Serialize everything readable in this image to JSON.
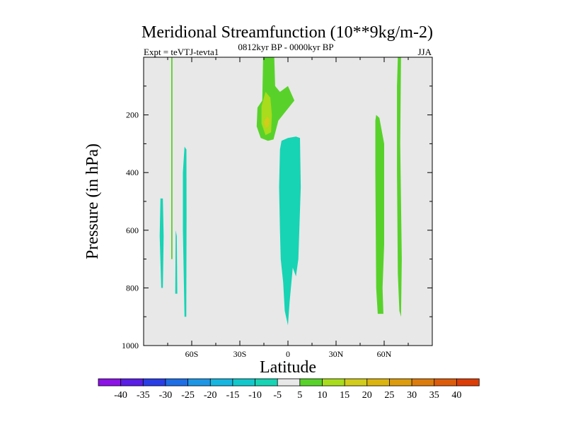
{
  "chart_data": {
    "type": "contour",
    "title": "Meridional Streamfunction (10**9kg/m-2)",
    "subtitle_left": "Expt = teVTJ-tevta1",
    "subtitle_center": "0812kyr BP - 0000kyr BP",
    "subtitle_right": "JJA",
    "xlabel": "Latitude",
    "ylabel": "Pressure (in hPa)",
    "xlim": [
      -90,
      90
    ],
    "ylim": [
      1000,
      0
    ],
    "x_ticks": [
      {
        "value": -60,
        "label": "60S"
      },
      {
        "value": -30,
        "label": "30S"
      },
      {
        "value": 0,
        "label": "0"
      },
      {
        "value": 30,
        "label": "30N"
      },
      {
        "value": 60,
        "label": "60N"
      }
    ],
    "y_ticks": [
      {
        "value": 200,
        "label": "200"
      },
      {
        "value": 400,
        "label": "400"
      },
      {
        "value": 600,
        "label": "600"
      },
      {
        "value": 800,
        "label": "800"
      },
      {
        "value": 1000,
        "label": "1000"
      }
    ],
    "background_color": "#e8e8e8",
    "contour_regions": [
      {
        "name": "SH cyan blob far",
        "level": -7.5,
        "color": "#16d4b4",
        "points": [
          [
            -79.5,
            490
          ],
          [
            -78,
            490
          ],
          [
            -77.5,
            620
          ],
          [
            -78,
            800
          ],
          [
            -79,
            800
          ],
          [
            -80,
            620
          ]
        ]
      },
      {
        "name": "SH green strip",
        "level": 7.5,
        "color": "#58d22a",
        "points": [
          [
            -72.8,
            0
          ],
          [
            -72,
            0
          ],
          [
            -72,
            700
          ],
          [
            -72.8,
            700
          ]
        ]
      },
      {
        "name": "SH cyan strip small",
        "level": -7.5,
        "color": "#16d4b4",
        "points": [
          [
            -70,
            600
          ],
          [
            -69.3,
            620
          ],
          [
            -69,
            820
          ],
          [
            -70.3,
            820
          ]
        ]
      },
      {
        "name": "SH cyan strip 65S",
        "level": -7.5,
        "color": "#16d4b4",
        "points": [
          [
            -64.5,
            310
          ],
          [
            -63.3,
            320
          ],
          [
            -63.2,
            550
          ],
          [
            -63.4,
            900
          ],
          [
            -64.5,
            900
          ],
          [
            -65.5,
            600
          ],
          [
            -65.5,
            400
          ]
        ]
      },
      {
        "name": "Tropical green upper cell",
        "level": 7.5,
        "color": "#58d22a",
        "points": [
          [
            -15.5,
            0
          ],
          [
            -8.5,
            0
          ],
          [
            -8,
            100
          ],
          [
            -5,
            120
          ],
          [
            0,
            100
          ],
          [
            4,
            150
          ],
          [
            -6,
            220
          ],
          [
            -9,
            285
          ],
          [
            -12.5,
            290
          ],
          [
            -17,
            280
          ],
          [
            -19.5,
            240
          ],
          [
            -19,
            175
          ],
          [
            -16,
            150
          ]
        ]
      },
      {
        "name": "Tropical yellow-green core",
        "level": 12.5,
        "color": "#a8dc1c",
        "points": [
          [
            -14,
            120
          ],
          [
            -11,
            140
          ],
          [
            -10,
            200
          ],
          [
            -10.5,
            260
          ],
          [
            -14,
            270
          ],
          [
            -16.5,
            230
          ],
          [
            -16.5,
            170
          ]
        ]
      },
      {
        "name": "Tropical yellow max",
        "level": 17.5,
        "color": "#d2cc1c",
        "points": [
          [
            -13,
            205
          ],
          [
            -11.5,
            215
          ],
          [
            -12,
            240
          ],
          [
            -14,
            245
          ],
          [
            -15,
            225
          ]
        ]
      },
      {
        "name": "Equatorial cyan cell",
        "level": -7.5,
        "color": "#16d4b4",
        "points": [
          [
            -4,
            290
          ],
          [
            0,
            280
          ],
          [
            5,
            275
          ],
          [
            7.5,
            280
          ],
          [
            8,
            450
          ],
          [
            6.5,
            700
          ],
          [
            5,
            760
          ],
          [
            3,
            730
          ],
          [
            1,
            850
          ],
          [
            0,
            930
          ],
          [
            -2,
            880
          ],
          [
            -3,
            780
          ],
          [
            -4.5,
            700
          ],
          [
            -5,
            600
          ],
          [
            -5.5,
            450
          ],
          [
            -5,
            320
          ]
        ]
      },
      {
        "name": "NH green cell 55N",
        "level": 7.5,
        "color": "#58d22a",
        "points": [
          [
            55,
            200
          ],
          [
            57,
            210
          ],
          [
            60,
            300
          ],
          [
            60,
            650
          ],
          [
            59,
            800
          ],
          [
            59.5,
            890
          ],
          [
            56,
            890
          ],
          [
            55,
            800
          ],
          [
            54.5,
            400
          ],
          [
            54.5,
            220
          ]
        ]
      },
      {
        "name": "NH green strip 70N",
        "level": 7.5,
        "color": "#58d22a",
        "points": [
          [
            68.5,
            0
          ],
          [
            70.5,
            0
          ],
          [
            70,
            300
          ],
          [
            71,
            700
          ],
          [
            70.5,
            900
          ],
          [
            69.5,
            880
          ],
          [
            68.5,
            750
          ],
          [
            68,
            400
          ],
          [
            68,
            100
          ]
        ]
      }
    ],
    "colorbar": {
      "colors": [
        "#8c12e6",
        "#5a1ee6",
        "#2a3ee6",
        "#1e6ee6",
        "#1e96e6",
        "#16b6e0",
        "#12c8cc",
        "#16d4b4",
        "#e8e8e8",
        "#58d22a",
        "#a8dc1c",
        "#d2cc1c",
        "#dcb410",
        "#dc9c0e",
        "#dc7c0c",
        "#dc5c0a",
        "#dc3c06"
      ],
      "labels": [
        "-40",
        "-35",
        "-30",
        "-25",
        "-20",
        "-15",
        "-10",
        "-5",
        "5",
        "10",
        "15",
        "20",
        "25",
        "30",
        "35",
        "40"
      ]
    }
  }
}
